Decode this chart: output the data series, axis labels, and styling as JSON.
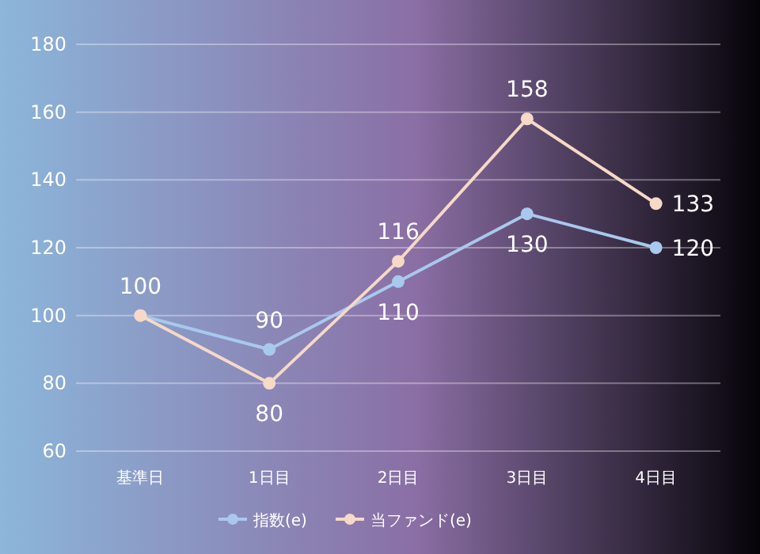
{
  "chart_data": {
    "type": "line",
    "categories": [
      "基準日",
      "1日目",
      "2日目",
      "3日目",
      "4日目"
    ],
    "series": [
      {
        "name": "指数(e)",
        "color": "#a9c8ee",
        "values": [
          100,
          90,
          110,
          130,
          120
        ],
        "value_labels": [
          "100",
          "90",
          "110",
          "130",
          "120"
        ]
      },
      {
        "name": "当ファンド(e)",
        "color": "#f6d9c6",
        "values": [
          100,
          80,
          116,
          158,
          133
        ],
        "value_labels": [
          null,
          "80",
          "116",
          "158",
          "133"
        ]
      }
    ],
    "ylim": [
      60,
      180
    ],
    "yticks": [
      60,
      80,
      100,
      120,
      140,
      160,
      180
    ],
    "grid": "y",
    "legend": "bottom",
    "marker": "circle",
    "line_style": "solid"
  }
}
